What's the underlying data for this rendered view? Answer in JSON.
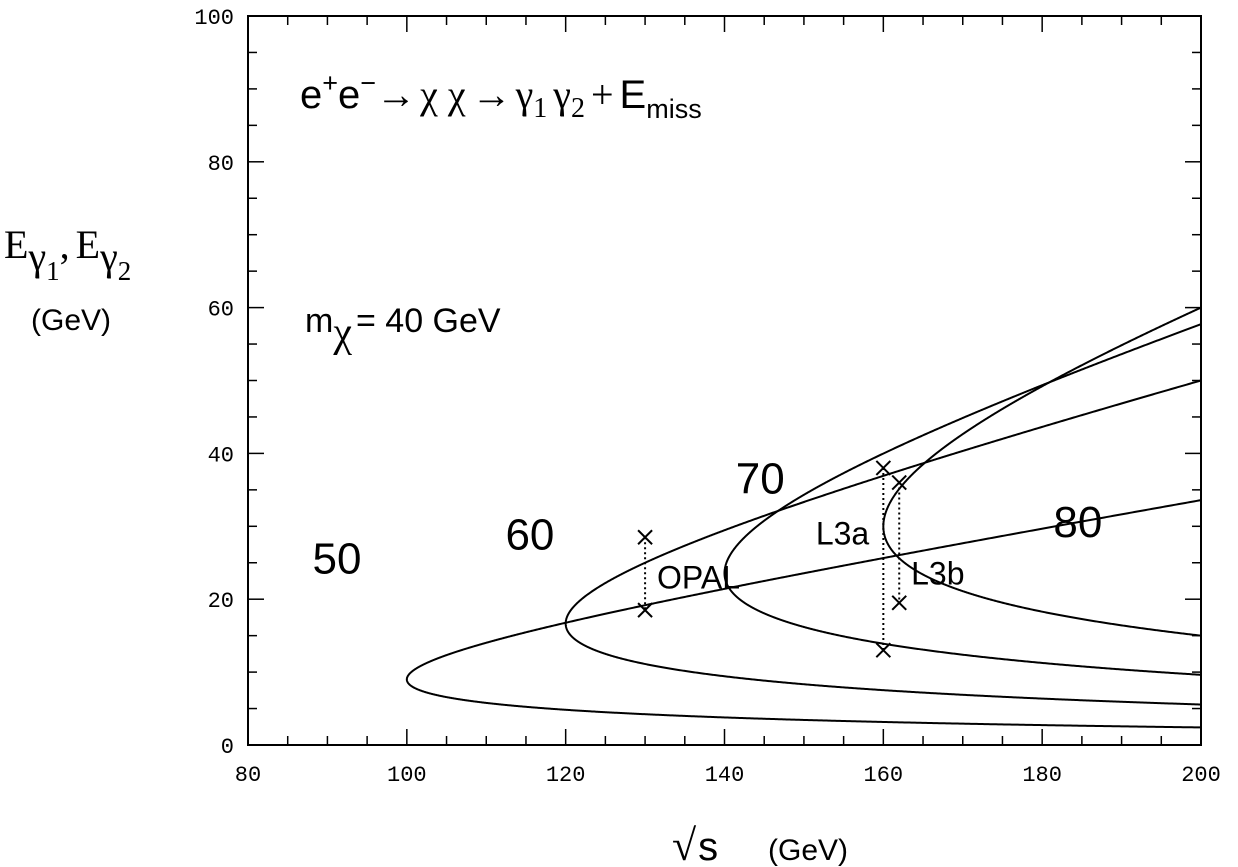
{
  "chart_data": {
    "type": "line",
    "title": {
      "lhs": "e",
      "lhs_sup1": "+",
      "lhs_e2": "e",
      "lhs_sup2": "−",
      "arrow1": "→",
      "chi_pair": "χ χ",
      "arrow2": "→",
      "gamma1": "γ",
      "gamma1_sub": "1",
      "gamma2": "γ",
      "gamma2_sub": "2",
      "plus": "+",
      "emiss": "E",
      "emiss_sub": "miss"
    },
    "ylabel": {
      "e1": "E",
      "g1": "γ",
      "g1_sub": "1",
      "comma": ",",
      "e2": "E",
      "g2": "γ",
      "g2_sub": "2",
      "units": "(GeV)"
    },
    "xlabel": {
      "sqrt": "√",
      "s": "s",
      "units": "(GeV)"
    },
    "mass_label": {
      "m": "m",
      "chi": "χ",
      "rest": "= 40 GeV"
    },
    "mchi": 40,
    "xlim": [
      80,
      200
    ],
    "ylim": [
      0,
      100
    ],
    "x_ticks": [
      "80",
      "100",
      "120",
      "140",
      "160",
      "180",
      "200"
    ],
    "y_ticks": [
      "0",
      "20",
      "40",
      "60",
      "80",
      "100"
    ],
    "curves": [
      {
        "label": "50",
        "m_selectron": 50,
        "label_x": 91.2,
        "label_y": 23.5
      },
      {
        "label": "60",
        "m_selectron": 60,
        "label_x": 115.5,
        "label_y": 26.8
      },
      {
        "label": "70",
        "m_selectron": 70,
        "label_x": 144.5,
        "label_y": 34.5
      },
      {
        "label": "80",
        "m_selectron": 80,
        "label_x": 184.5,
        "label_y": 28.5
      }
    ],
    "markers": [
      {
        "name": "OPAL",
        "label": "OPAL",
        "sqrt_s": 130,
        "e_high": 28.5,
        "e_low": 18.5,
        "label_x": 131.5,
        "label_y": 21.5
      },
      {
        "name": "L3a",
        "label": "L3a",
        "sqrt_s": 160,
        "e_high": 38.0,
        "e_low": 13.0,
        "label_x": 151.5,
        "label_y": 27.5
      },
      {
        "name": "L3b",
        "label": "L3b",
        "sqrt_s": 162,
        "e_high": 36.0,
        "e_low": 19.5,
        "label_x": 163.5,
        "label_y": 22.0
      }
    ],
    "grid": false,
    "legend": "none"
  }
}
